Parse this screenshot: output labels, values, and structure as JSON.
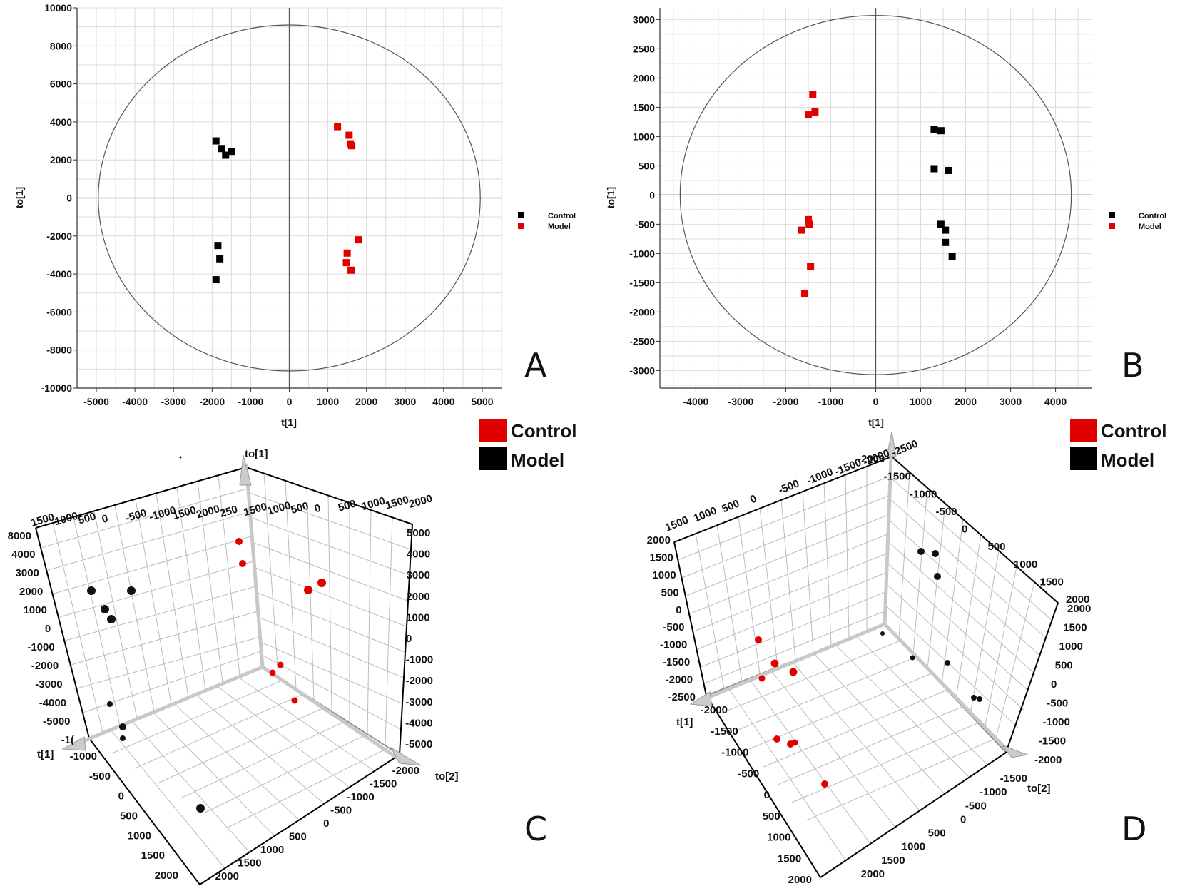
{
  "chart_data": [
    {
      "panel": "A",
      "type": "scatter",
      "xlabel": "t[1]",
      "ylabel": "to[1]",
      "xlim": [
        -5500,
        5500
      ],
      "ylim": [
        -10000,
        10000
      ],
      "xticks": [
        -5000,
        -4000,
        -3000,
        -2000,
        -1000,
        0,
        1000,
        2000,
        3000,
        4000,
        5000
      ],
      "yticks": [
        -10000,
        -8000,
        -6000,
        -4000,
        -2000,
        0,
        2000,
        4000,
        6000,
        8000,
        10000
      ],
      "ellipse": {
        "rx": 4950,
        "ry": 9100
      },
      "legend_position": "right",
      "legend": [
        {
          "name": "Control",
          "color": "#000000"
        },
        {
          "name": "Model",
          "color": "#e00000"
        }
      ],
      "series": [
        {
          "name": "Control",
          "color": "#000000",
          "points": [
            [
              -1900,
              3000
            ],
            [
              -1750,
              2600
            ],
            [
              -1650,
              2250
            ],
            [
              -1500,
              2450
            ],
            [
              -1850,
              -2500
            ],
            [
              -1800,
              -3200
            ],
            [
              -1900,
              -4300
            ]
          ]
        },
        {
          "name": "Model",
          "color": "#e00000",
          "points": [
            [
              1250,
              3750
            ],
            [
              1550,
              3300
            ],
            [
              1580,
              2850
            ],
            [
              1620,
              2750
            ],
            [
              1800,
              -2200
            ],
            [
              1500,
              -2900
            ],
            [
              1480,
              -3400
            ],
            [
              1600,
              -3800
            ]
          ]
        }
      ]
    },
    {
      "panel": "B",
      "type": "scatter",
      "xlabel": "t[1]",
      "ylabel": "to[1]",
      "xlim": [
        -4800,
        4800
      ],
      "ylim": [
        -3300,
        3200
      ],
      "xticks": [
        -4000,
        -3000,
        -2000,
        -1000,
        0,
        1000,
        2000,
        3000,
        4000
      ],
      "yticks": [
        -3000,
        -2500,
        -2000,
        -1500,
        -1000,
        -500,
        0,
        500,
        1000,
        1500,
        2000,
        2500,
        3000
      ],
      "ellipse": {
        "rx": 4350,
        "ry": 3070
      },
      "legend_position": "right",
      "legend": [
        {
          "name": "Control",
          "color": "#000000"
        },
        {
          "name": "Model",
          "color": "#e00000"
        }
      ],
      "series": [
        {
          "name": "Control",
          "color": "#000000",
          "points": [
            [
              1300,
              1120
            ],
            [
              1450,
              1100
            ],
            [
              1300,
              450
            ],
            [
              1620,
              420
            ],
            [
              1450,
              -500
            ],
            [
              1550,
              -600
            ],
            [
              1550,
              -810
            ],
            [
              1700,
              -1050
            ]
          ]
        },
        {
          "name": "Model",
          "color": "#e00000",
          "points": [
            [
              -1400,
              1720
            ],
            [
              -1350,
              1420
            ],
            [
              -1500,
              1370
            ],
            [
              -1500,
              -420
            ],
            [
              -1480,
              -500
            ],
            [
              -1650,
              -600
            ],
            [
              -1450,
              -1220
            ],
            [
              -1580,
              -1690
            ]
          ]
        }
      ]
    },
    {
      "panel": "C",
      "type": "scatter",
      "projection": "3d",
      "legend": [
        {
          "name": "Control",
          "color": "#e00000"
        },
        {
          "name": "Model",
          "color": "#000000"
        }
      ],
      "axis_labels": {
        "t1": "t[1]",
        "to1": "to[1]",
        "to2": "to[2]"
      },
      "ticks": {
        "left": [
          "8000",
          "4000",
          "3000",
          "2000",
          "1000",
          "0",
          "-1000",
          "-2000",
          "-3000",
          "-4000",
          "-5000",
          "-1("
        ],
        "top": [
          "1500",
          "1000",
          "500",
          "0",
          "-500",
          "-1000",
          "1500",
          "2000",
          "250",
          "1500",
          "1000",
          "500",
          "0",
          "500",
          "1000",
          "1500",
          "2000"
        ],
        "right": [
          "5000",
          "4000",
          "3000",
          "2000",
          "1000",
          "0",
          "-1000",
          "-2000",
          "-3000",
          "-4000",
          "-5000"
        ],
        "bottom_left": [
          "-1000",
          "-500",
          "0",
          "500",
          "1000",
          "1500",
          "2000"
        ],
        "bottom_right": [
          "-2000",
          "-1500",
          "-1000",
          "-500",
          "0",
          "500",
          "1000",
          "1500",
          "2000"
        ]
      }
    },
    {
      "panel": "D",
      "type": "scatter",
      "projection": "3d",
      "legend": [
        {
          "name": "Control",
          "color": "#e00000"
        },
        {
          "name": "Model",
          "color": "#000000"
        }
      ],
      "axis_labels": {
        "t1": "t[1]",
        "to2": "to[2]"
      },
      "ticks": {
        "left": [
          "2000",
          "1500",
          "1000",
          "500",
          "0",
          "-500",
          "-1000",
          "-1500",
          "-2000",
          "-2500"
        ],
        "top": [
          "1500",
          "1000",
          "500",
          "0",
          "-500",
          "-1000",
          "-1500",
          "-2000",
          "-2500"
        ],
        "right_upper": [
          "-2000",
          "-1500",
          "-1000",
          "-500",
          "0",
          "500",
          "1000",
          "1500",
          "2000"
        ],
        "right_lower": [
          "2000",
          "1500",
          "1000",
          "500",
          "0",
          "-500",
          "-1000",
          "-1500",
          "-2000"
        ],
        "bottom_left": [
          "-2000",
          "-1500",
          "-1000",
          "-500",
          "0",
          "500",
          "1000",
          "1500",
          "2000"
        ],
        "bottom_right": [
          "-1500",
          "-1000",
          "-500",
          "0",
          "500",
          "1000",
          "1500",
          "2000"
        ]
      }
    }
  ]
}
